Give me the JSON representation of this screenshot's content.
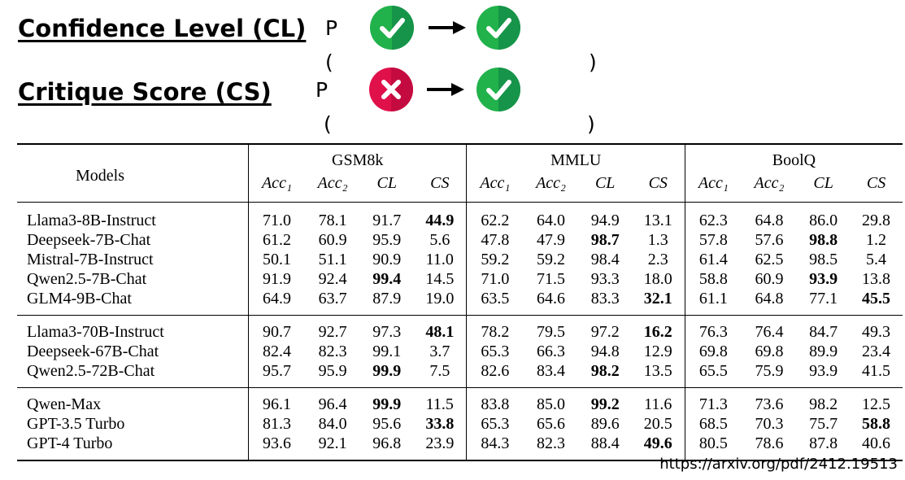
{
  "legend": {
    "cl_title": "Confidence Level (CL)",
    "cs_title": "Critique Score (CS)",
    "p_letter": "P",
    "open_paren": "(",
    "close_paren": ")",
    "icons": {
      "correct": "check-circle-icon",
      "wrong": "cross-circle-icon",
      "arrow": "right-arrow-icon"
    },
    "colors": {
      "green": "#22c55e",
      "red": "#e11d48"
    }
  },
  "table": {
    "models_header": "Models",
    "datasets": [
      "GSM8k",
      "MMLU",
      "BoolQ"
    ],
    "metrics": [
      "Acc₁",
      "Acc₂",
      "CL",
      "CS"
    ],
    "groups": [
      {
        "rows": [
          {
            "model": "Llama3-8B-Instruct",
            "values": [
              "71.0",
              "78.1",
              "91.7",
              "44.9",
              "62.2",
              "64.0",
              "94.9",
              "13.1",
              "62.3",
              "64.8",
              "86.0",
              "29.8"
            ],
            "bold": [
              3
            ]
          },
          {
            "model": "Deepseek-7B-Chat",
            "values": [
              "61.2",
              "60.9",
              "95.9",
              "5.6",
              "47.8",
              "47.9",
              "98.7",
              "1.3",
              "57.8",
              "57.6",
              "98.8",
              "1.2"
            ],
            "bold": [
              6,
              10
            ]
          },
          {
            "model": "Mistral-7B-Instruct",
            "values": [
              "50.1",
              "51.1",
              "90.9",
              "11.0",
              "59.2",
              "59.2",
              "98.4",
              "2.3",
              "61.4",
              "62.5",
              "98.5",
              "5.4"
            ],
            "bold": []
          },
          {
            "model": "Qwen2.5-7B-Chat",
            "values": [
              "91.9",
              "92.4",
              "99.4",
              "14.5",
              "71.0",
              "71.5",
              "93.3",
              "18.0",
              "58.8",
              "60.9",
              "93.9",
              "13.8"
            ],
            "bold": [
              2,
              10
            ]
          },
          {
            "model": "GLM4-9B-Chat",
            "values": [
              "64.9",
              "63.7",
              "87.9",
              "19.0",
              "63.5",
              "64.6",
              "83.3",
              "32.1",
              "61.1",
              "64.8",
              "77.1",
              "45.5"
            ],
            "bold": [
              7,
              11
            ]
          }
        ]
      },
      {
        "rows": [
          {
            "model": "Llama3-70B-Instruct",
            "values": [
              "90.7",
              "92.7",
              "97.3",
              "48.1",
              "78.2",
              "79.5",
              "97.2",
              "16.2",
              "76.3",
              "76.4",
              "84.7",
              "49.3"
            ],
            "bold": [
              3,
              7
            ]
          },
          {
            "model": "Deepseek-67B-Chat",
            "values": [
              "82.4",
              "82.3",
              "99.1",
              "3.7",
              "65.3",
              "66.3",
              "94.8",
              "12.9",
              "69.8",
              "69.8",
              "89.9",
              "23.4"
            ],
            "bold": []
          },
          {
            "model": "Qwen2.5-72B-Chat",
            "values": [
              "95.7",
              "95.9",
              "99.9",
              "7.5",
              "82.6",
              "83.4",
              "98.2",
              "13.5",
              "65.5",
              "75.9",
              "93.9",
              "41.5"
            ],
            "bold": [
              2,
              6
            ]
          }
        ]
      },
      {
        "rows": [
          {
            "model": "Qwen-Max",
            "values": [
              "96.1",
              "96.4",
              "99.9",
              "11.5",
              "83.8",
              "85.0",
              "99.2",
              "11.6",
              "71.3",
              "73.6",
              "98.2",
              "12.5"
            ],
            "bold": [
              2,
              6
            ]
          },
          {
            "model": "GPT-3.5 Turbo",
            "values": [
              "81.3",
              "84.0",
              "95.6",
              "33.8",
              "65.3",
              "65.6",
              "89.6",
              "20.5",
              "68.5",
              "70.3",
              "75.7",
              "58.8"
            ],
            "bold": [
              3,
              11
            ]
          },
          {
            "model": "GPT-4 Turbo",
            "values": [
              "93.6",
              "92.1",
              "96.8",
              "23.9",
              "84.3",
              "82.3",
              "88.4",
              "49.6",
              "80.5",
              "78.6",
              "87.8",
              "40.6"
            ],
            "bold": [
              7
            ]
          }
        ]
      }
    ]
  },
  "source_url": "https://arxiv.org/pdf/2412.19513"
}
